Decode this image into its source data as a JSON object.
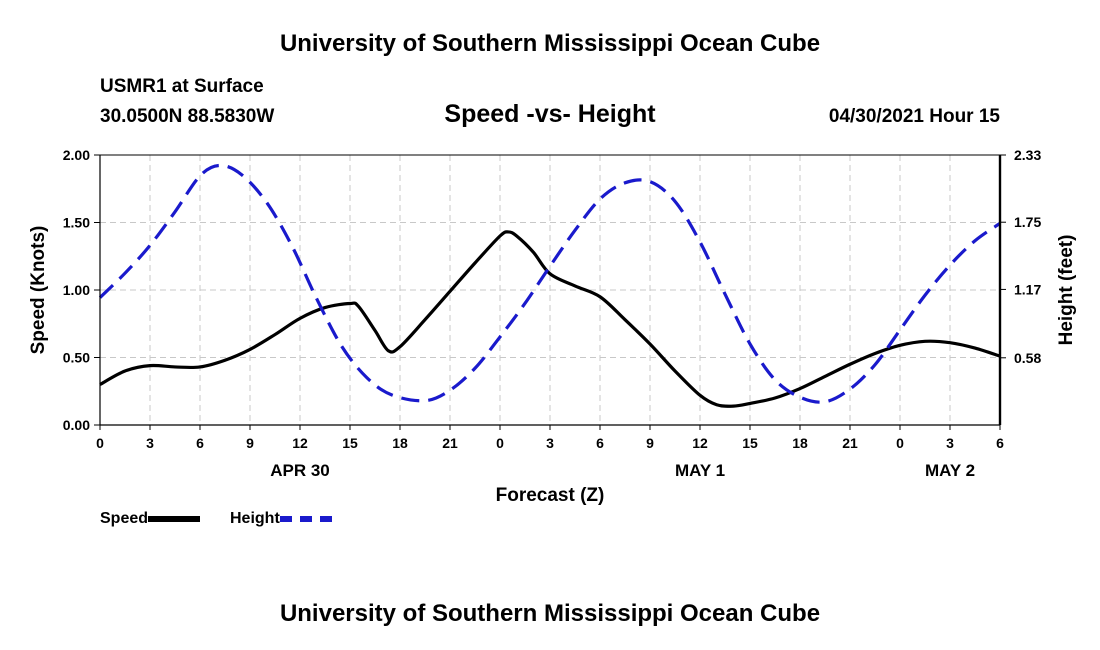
{
  "header": {
    "title_top": "University of Southern Mississippi Ocean Cube",
    "title_bottom": "University of Southern Mississippi Ocean Cube",
    "station": "USMR1 at Surface",
    "coords": "30.0500N  88.5830W",
    "subtitle": "Speed -vs- Height",
    "datetime": "04/30/2021 Hour 15"
  },
  "legend": {
    "speed_label": "Speed",
    "height_label": "Height"
  },
  "colors": {
    "speed": "#000000",
    "height": "#1a1acc",
    "grid": "#c8c8c8"
  },
  "chart_data": {
    "type": "line",
    "title": "Speed -vs- Height",
    "xlabel": "Forecast (Z)",
    "ylabel": "Speed (Knots)",
    "ylabel_right": "Height (feet)",
    "x_range": [
      0,
      54
    ],
    "ylim": [
      0,
      2.0
    ],
    "ylim_right": [
      0,
      2.33
    ],
    "y_ticks": [
      "0.00",
      "0.50",
      "1.00",
      "1.50",
      "2.00"
    ],
    "y_tick_values": [
      0,
      0.5,
      1.0,
      1.5,
      2.0
    ],
    "y_right_ticks": [
      "0.58",
      "1.17",
      "1.75",
      "2.33"
    ],
    "y_right_tick_values": [
      0.58,
      1.17,
      1.75,
      2.33
    ],
    "x_ticks": [
      {
        "x": 0,
        "label": "0"
      },
      {
        "x": 3,
        "label": "3"
      },
      {
        "x": 6,
        "label": "6"
      },
      {
        "x": 9,
        "label": "9"
      },
      {
        "x": 12,
        "label": "12"
      },
      {
        "x": 15,
        "label": "15"
      },
      {
        "x": 18,
        "label": "18"
      },
      {
        "x": 21,
        "label": "21"
      },
      {
        "x": 24,
        "label": "0"
      },
      {
        "x": 27,
        "label": "3"
      },
      {
        "x": 30,
        "label": "6"
      },
      {
        "x": 33,
        "label": "9"
      },
      {
        "x": 36,
        "label": "12"
      },
      {
        "x": 39,
        "label": "15"
      },
      {
        "x": 42,
        "label": "18"
      },
      {
        "x": 45,
        "label": "21"
      },
      {
        "x": 48,
        "label": "0"
      },
      {
        "x": 51,
        "label": "3"
      },
      {
        "x": 54,
        "label": "6"
      }
    ],
    "day_labels": [
      {
        "x": 12,
        "label": "APR 30"
      },
      {
        "x": 36,
        "label": "MAY 1"
      },
      {
        "x": 51,
        "label": "MAY 2"
      }
    ],
    "grid": true,
    "series": [
      {
        "name": "Speed",
        "axis": "left",
        "style": "solid",
        "x": [
          0,
          1.5,
          3,
          4.5,
          6,
          7.5,
          9,
          10.5,
          12,
          13.5,
          15,
          15.5,
          16.5,
          17.3,
          18,
          19.5,
          21,
          22.5,
          24,
          24.5,
          25,
          26,
          27,
          28.5,
          30,
          31.5,
          33,
          34.5,
          36,
          37,
          38,
          39,
          40.5,
          42,
          43.5,
          45,
          46.5,
          48,
          49.5,
          51,
          52.5,
          54
        ],
        "values": [
          0.3,
          0.4,
          0.44,
          0.43,
          0.43,
          0.48,
          0.56,
          0.67,
          0.79,
          0.87,
          0.9,
          0.88,
          0.7,
          0.55,
          0.58,
          0.78,
          0.99,
          1.2,
          1.4,
          1.43,
          1.4,
          1.28,
          1.12,
          1.03,
          0.95,
          0.78,
          0.6,
          0.4,
          0.22,
          0.15,
          0.14,
          0.16,
          0.2,
          0.27,
          0.36,
          0.45,
          0.53,
          0.59,
          0.62,
          0.61,
          0.57,
          0.51
        ]
      },
      {
        "name": "Height",
        "axis": "right",
        "style": "dashed",
        "x": [
          0,
          1.5,
          3,
          4.5,
          6,
          7.2,
          8.5,
          10,
          11.5,
          13,
          14.5,
          16,
          17.5,
          19.5,
          21,
          22.5,
          24,
          25.5,
          27,
          28.5,
          30,
          31.5,
          33,
          34.5,
          36,
          37.5,
          39,
          40.5,
          42,
          43.5,
          45,
          46.5,
          48,
          49.5,
          51,
          52.5,
          54
        ],
        "values": [
          1.1,
          1.31,
          1.55,
          1.84,
          2.15,
          2.24,
          2.16,
          1.92,
          1.55,
          1.09,
          0.68,
          0.41,
          0.26,
          0.21,
          0.3,
          0.49,
          0.76,
          1.05,
          1.37,
          1.68,
          1.95,
          2.09,
          2.1,
          1.93,
          1.58,
          1.13,
          0.7,
          0.39,
          0.24,
          0.2,
          0.31,
          0.52,
          0.82,
          1.12,
          1.38,
          1.59,
          1.74
        ]
      }
    ]
  }
}
